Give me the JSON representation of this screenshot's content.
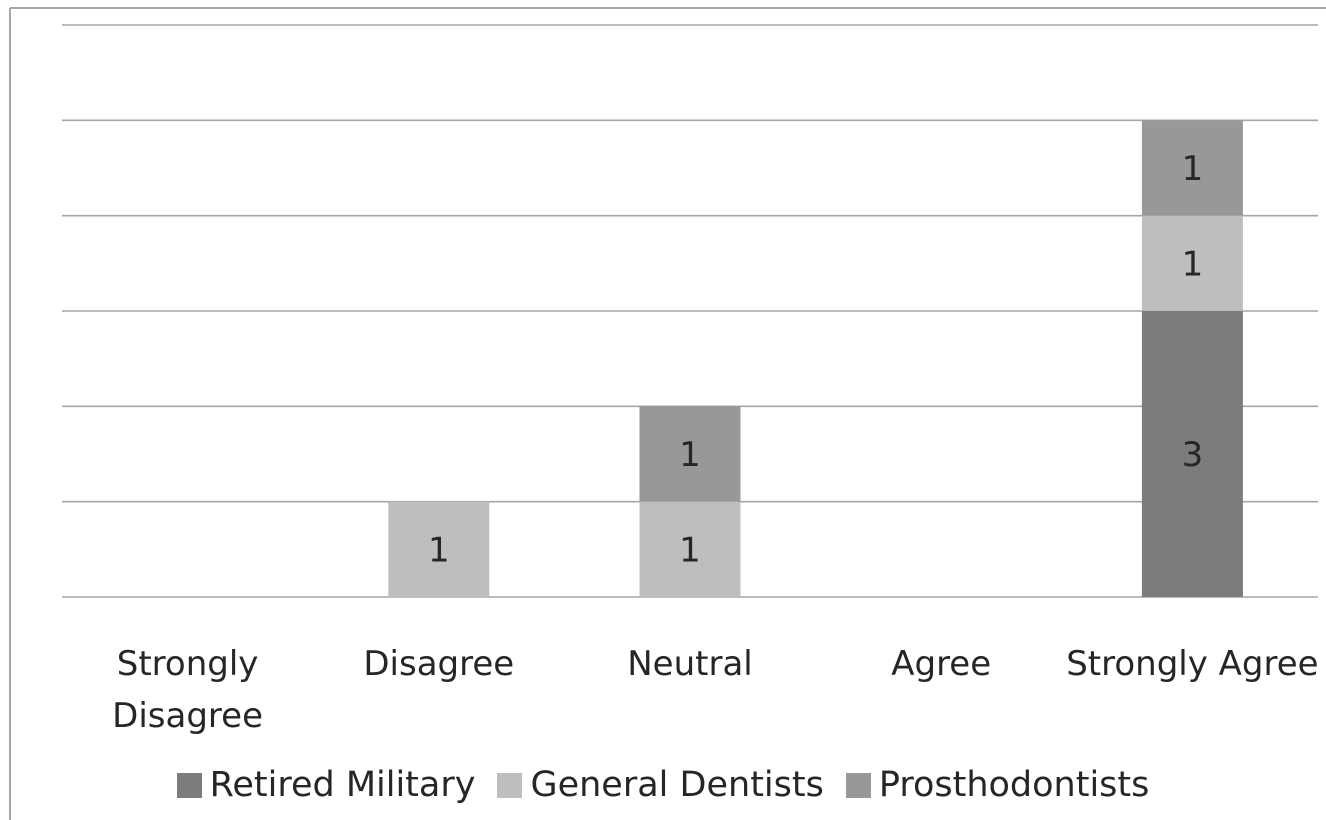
{
  "chart_data": {
    "type": "bar",
    "stacked": true,
    "title": "",
    "xlabel": "",
    "ylabel": "",
    "ylim": [
      0,
      6
    ],
    "grid": true,
    "legend_position": "bottom",
    "categories": [
      "Strongly Disagree",
      "Disagree",
      "Neutral",
      "Agree",
      "Strongly Agree"
    ],
    "series": [
      {
        "name": "Retired Military",
        "color": "#7c7c7f",
        "values": [
          0,
          0,
          0,
          0,
          3
        ]
      },
      {
        "name": "General Dentists",
        "color": "#bebec1",
        "values": [
          0,
          1,
          1,
          0,
          1
        ]
      },
      {
        "name": "Prosthodontists",
        "color": "#98989b",
        "values": [
          0,
          0,
          1,
          0,
          1
        ]
      }
    ]
  }
}
